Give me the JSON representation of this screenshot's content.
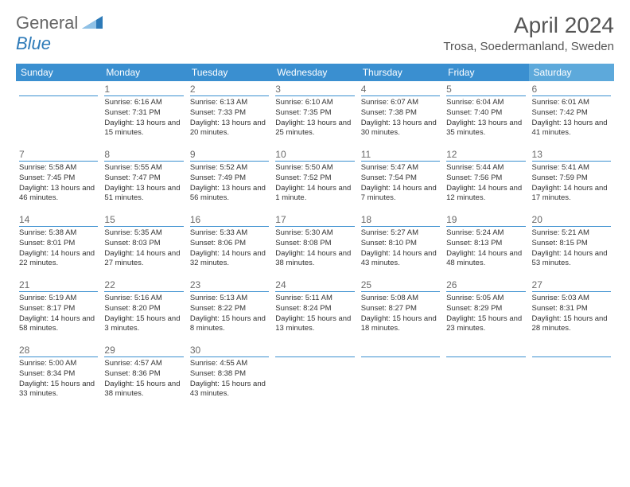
{
  "logo": {
    "text_general": "General",
    "text_blue": "Blue",
    "icon_color": "#2d7ab8"
  },
  "title": {
    "month_year": "April 2024",
    "location": "Trosa, Soedermanland, Sweden"
  },
  "colors": {
    "header_bg": "#3a8fd0",
    "saturday_bg": "#5da9db",
    "text": "#333333",
    "logo_gray": "#666666",
    "daynum": "#6a6a6a",
    "rule": "#3a8fd0"
  },
  "day_names": [
    "Sunday",
    "Monday",
    "Tuesday",
    "Wednesday",
    "Thursday",
    "Friday",
    "Saturday"
  ],
  "weeks": [
    [
      {
        "n": "",
        "sr": "",
        "ss": "",
        "dl": ""
      },
      {
        "n": "1",
        "sr": "Sunrise: 6:16 AM",
        "ss": "Sunset: 7:31 PM",
        "dl": "Daylight: 13 hours and 15 minutes."
      },
      {
        "n": "2",
        "sr": "Sunrise: 6:13 AM",
        "ss": "Sunset: 7:33 PM",
        "dl": "Daylight: 13 hours and 20 minutes."
      },
      {
        "n": "3",
        "sr": "Sunrise: 6:10 AM",
        "ss": "Sunset: 7:35 PM",
        "dl": "Daylight: 13 hours and 25 minutes."
      },
      {
        "n": "4",
        "sr": "Sunrise: 6:07 AM",
        "ss": "Sunset: 7:38 PM",
        "dl": "Daylight: 13 hours and 30 minutes."
      },
      {
        "n": "5",
        "sr": "Sunrise: 6:04 AM",
        "ss": "Sunset: 7:40 PM",
        "dl": "Daylight: 13 hours and 35 minutes."
      },
      {
        "n": "6",
        "sr": "Sunrise: 6:01 AM",
        "ss": "Sunset: 7:42 PM",
        "dl": "Daylight: 13 hours and 41 minutes."
      }
    ],
    [
      {
        "n": "7",
        "sr": "Sunrise: 5:58 AM",
        "ss": "Sunset: 7:45 PM",
        "dl": "Daylight: 13 hours and 46 minutes."
      },
      {
        "n": "8",
        "sr": "Sunrise: 5:55 AM",
        "ss": "Sunset: 7:47 PM",
        "dl": "Daylight: 13 hours and 51 minutes."
      },
      {
        "n": "9",
        "sr": "Sunrise: 5:52 AM",
        "ss": "Sunset: 7:49 PM",
        "dl": "Daylight: 13 hours and 56 minutes."
      },
      {
        "n": "10",
        "sr": "Sunrise: 5:50 AM",
        "ss": "Sunset: 7:52 PM",
        "dl": "Daylight: 14 hours and 1 minute."
      },
      {
        "n": "11",
        "sr": "Sunrise: 5:47 AM",
        "ss": "Sunset: 7:54 PM",
        "dl": "Daylight: 14 hours and 7 minutes."
      },
      {
        "n": "12",
        "sr": "Sunrise: 5:44 AM",
        "ss": "Sunset: 7:56 PM",
        "dl": "Daylight: 14 hours and 12 minutes."
      },
      {
        "n": "13",
        "sr": "Sunrise: 5:41 AM",
        "ss": "Sunset: 7:59 PM",
        "dl": "Daylight: 14 hours and 17 minutes."
      }
    ],
    [
      {
        "n": "14",
        "sr": "Sunrise: 5:38 AM",
        "ss": "Sunset: 8:01 PM",
        "dl": "Daylight: 14 hours and 22 minutes."
      },
      {
        "n": "15",
        "sr": "Sunrise: 5:35 AM",
        "ss": "Sunset: 8:03 PM",
        "dl": "Daylight: 14 hours and 27 minutes."
      },
      {
        "n": "16",
        "sr": "Sunrise: 5:33 AM",
        "ss": "Sunset: 8:06 PM",
        "dl": "Daylight: 14 hours and 32 minutes."
      },
      {
        "n": "17",
        "sr": "Sunrise: 5:30 AM",
        "ss": "Sunset: 8:08 PM",
        "dl": "Daylight: 14 hours and 38 minutes."
      },
      {
        "n": "18",
        "sr": "Sunrise: 5:27 AM",
        "ss": "Sunset: 8:10 PM",
        "dl": "Daylight: 14 hours and 43 minutes."
      },
      {
        "n": "19",
        "sr": "Sunrise: 5:24 AM",
        "ss": "Sunset: 8:13 PM",
        "dl": "Daylight: 14 hours and 48 minutes."
      },
      {
        "n": "20",
        "sr": "Sunrise: 5:21 AM",
        "ss": "Sunset: 8:15 PM",
        "dl": "Daylight: 14 hours and 53 minutes."
      }
    ],
    [
      {
        "n": "21",
        "sr": "Sunrise: 5:19 AM",
        "ss": "Sunset: 8:17 PM",
        "dl": "Daylight: 14 hours and 58 minutes."
      },
      {
        "n": "22",
        "sr": "Sunrise: 5:16 AM",
        "ss": "Sunset: 8:20 PM",
        "dl": "Daylight: 15 hours and 3 minutes."
      },
      {
        "n": "23",
        "sr": "Sunrise: 5:13 AM",
        "ss": "Sunset: 8:22 PM",
        "dl": "Daylight: 15 hours and 8 minutes."
      },
      {
        "n": "24",
        "sr": "Sunrise: 5:11 AM",
        "ss": "Sunset: 8:24 PM",
        "dl": "Daylight: 15 hours and 13 minutes."
      },
      {
        "n": "25",
        "sr": "Sunrise: 5:08 AM",
        "ss": "Sunset: 8:27 PM",
        "dl": "Daylight: 15 hours and 18 minutes."
      },
      {
        "n": "26",
        "sr": "Sunrise: 5:05 AM",
        "ss": "Sunset: 8:29 PM",
        "dl": "Daylight: 15 hours and 23 minutes."
      },
      {
        "n": "27",
        "sr": "Sunrise: 5:03 AM",
        "ss": "Sunset: 8:31 PM",
        "dl": "Daylight: 15 hours and 28 minutes."
      }
    ],
    [
      {
        "n": "28",
        "sr": "Sunrise: 5:00 AM",
        "ss": "Sunset: 8:34 PM",
        "dl": "Daylight: 15 hours and 33 minutes."
      },
      {
        "n": "29",
        "sr": "Sunrise: 4:57 AM",
        "ss": "Sunset: 8:36 PM",
        "dl": "Daylight: 15 hours and 38 minutes."
      },
      {
        "n": "30",
        "sr": "Sunrise: 4:55 AM",
        "ss": "Sunset: 8:38 PM",
        "dl": "Daylight: 15 hours and 43 minutes."
      },
      {
        "n": "",
        "sr": "",
        "ss": "",
        "dl": ""
      },
      {
        "n": "",
        "sr": "",
        "ss": "",
        "dl": ""
      },
      {
        "n": "",
        "sr": "",
        "ss": "",
        "dl": ""
      },
      {
        "n": "",
        "sr": "",
        "ss": "",
        "dl": ""
      }
    ]
  ]
}
